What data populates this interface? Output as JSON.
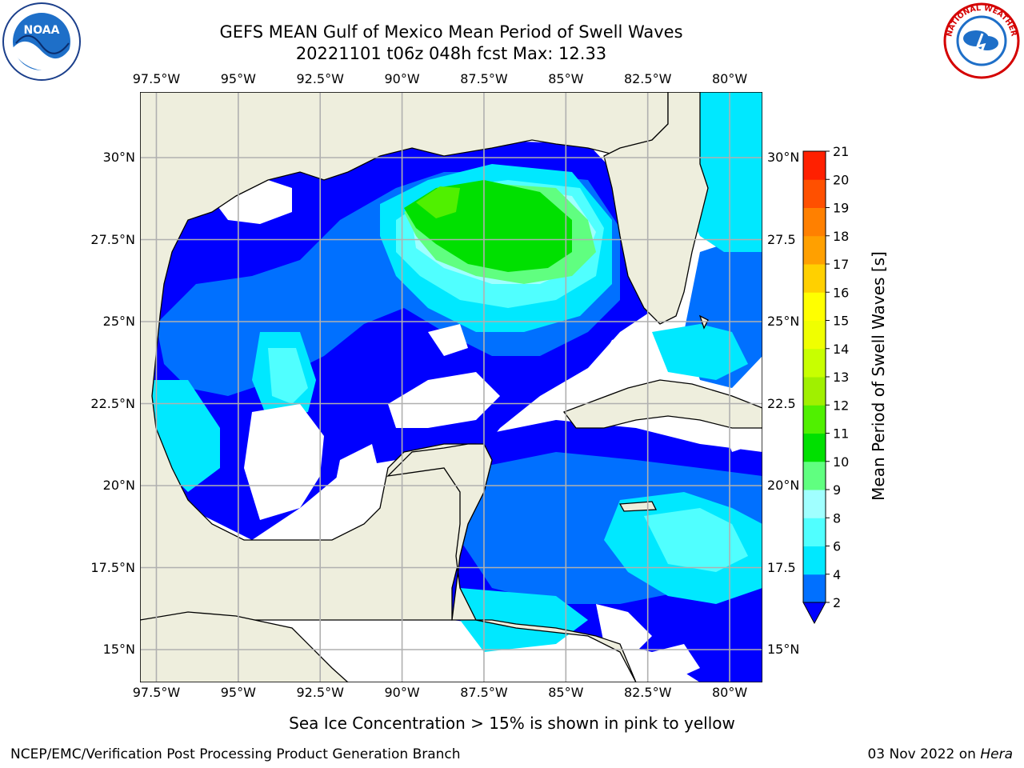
{
  "header": {
    "title_line1": "GEFS MEAN Gulf of Mexico Mean Period of Swell Waves",
    "title_line2": "20221101 t06z 048h fcst   Max: 12.33"
  },
  "logos": {
    "noaa": {
      "center_text": "NOAA",
      "ring_text": "NATIONAL OCEANIC AND ATMOSPHERIC ADMINISTRATION · U.S. DEPARTMENT OF COMMERCE"
    },
    "nws": {
      "ring_text": "NATIONAL WEATHER SERVICE"
    }
  },
  "map": {
    "lon_labels": [
      "97.5°W",
      "95°W",
      "92.5°W",
      "90°W",
      "87.5°W",
      "85°W",
      "82.5°W",
      "80°W"
    ],
    "lat_labels": [
      "30°N",
      "27.5°N",
      "25°N",
      "22.5°N",
      "20°N",
      "17.5°N",
      "15°N"
    ],
    "lat_labels_right": [
      "30°N",
      "27.5",
      "25°N",
      "22.5",
      "20°N",
      "17.5",
      "15°N"
    ],
    "extent": {
      "lon_min": -98,
      "lon_max": -79,
      "lat_min": 14,
      "lat_max": 32
    },
    "colors": {
      "land": "#eeeedd",
      "no_data": "#ffffff",
      "grid": "#b0b0b0",
      "coast": "#000000"
    }
  },
  "colorbar": {
    "title": "Mean Period of Swell Waves [s]",
    "tick_labels": [
      "2",
      "4",
      "6",
      "8",
      "9",
      "10",
      "11",
      "12",
      "13",
      "14",
      "15",
      "16",
      "17",
      "18",
      "19",
      "20",
      "21"
    ],
    "levels": [
      2,
      4,
      6,
      8,
      9,
      10,
      11,
      12,
      13,
      14,
      15,
      16,
      17,
      18,
      19,
      20,
      21
    ],
    "colors": [
      "#0070ff",
      "#00e8ff",
      "#50ffff",
      "#a0ffff",
      "#60ff80",
      "#00e000",
      "#50f000",
      "#a0f000",
      "#c8ff00",
      "#f0ff00",
      "#ffff00",
      "#ffd000",
      "#ffa000",
      "#ff8000",
      "#ff5000",
      "#ff2000",
      "#ff0000"
    ],
    "under_color": "#0000ff"
  },
  "footer": {
    "note": "Sea Ice Concentration > 15% is shown in pink to yellow",
    "credit": "NCEP/EMC/Verification Post Processing Product Generation Branch",
    "date": "03 Nov 2022 on",
    "host": "Hera"
  }
}
